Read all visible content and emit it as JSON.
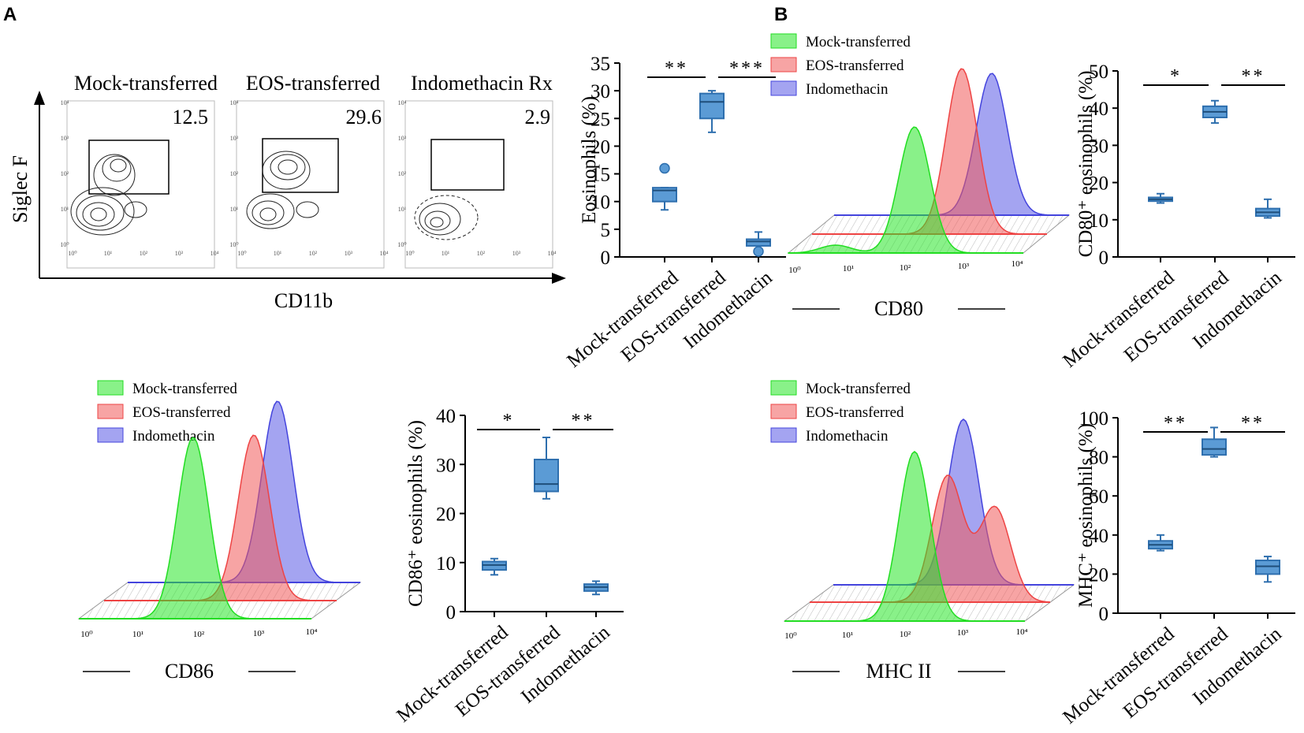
{
  "panels": {
    "a": "A",
    "b": "B"
  },
  "flow": {
    "plots": [
      {
        "title": "Mock-transferred",
        "value": "12.5"
      },
      {
        "title": "EOS-transferred",
        "value": "29.6"
      },
      {
        "title": "Indomethacin Rx",
        "value": "2.9"
      }
    ],
    "y_axis_label": "Siglec F",
    "x_axis_label": "CD11b",
    "tick_labels": [
      "10⁰",
      "10¹",
      "10²",
      "10³",
      "10⁴"
    ]
  },
  "histograms": {
    "legend": [
      "Mock-transferred",
      "EOS-transferred",
      "Indomethacin"
    ],
    "colors": {
      "mock": "#22dd22",
      "eos": "#ee4444",
      "indo": "#4444dd"
    },
    "tick_labels": [
      "10⁰",
      "10¹",
      "10²",
      "10³",
      "10⁴"
    ],
    "items": [
      {
        "xlabel": "CD80"
      },
      {
        "xlabel": "CD86"
      },
      {
        "xlabel": "MHC II"
      }
    ]
  },
  "chart_data": [
    {
      "type": "box",
      "ylabel": "Eosinophils (%)",
      "categories": [
        "Mock-transferred",
        "EOS-transferred",
        "Indomethacin"
      ],
      "yticks": [
        0,
        5,
        10,
        15,
        20,
        25,
        30,
        35
      ],
      "ylim": [
        0,
        35
      ],
      "boxes": [
        {
          "min": 8.5,
          "q1": 10,
          "median": 12,
          "q3": 12.5,
          "max": 12.5,
          "outliers": [
            16
          ]
        },
        {
          "min": 22.5,
          "q1": 25,
          "median": 28,
          "q3": 29.5,
          "max": 30,
          "outliers": []
        },
        {
          "min": 1.5,
          "q1": 2,
          "median": 2.8,
          "q3": 3.2,
          "max": 4.5,
          "outliers": [
            1
          ]
        }
      ],
      "significance": [
        "**",
        "***"
      ]
    },
    {
      "type": "box",
      "ylabel": "CD80⁺ eosinophils (%)",
      "categories": [
        "Mock-transferred",
        "EOS-transferred",
        "Indomethacin"
      ],
      "yticks": [
        0,
        10,
        20,
        30,
        40,
        50
      ],
      "ylim": [
        0,
        50
      ],
      "boxes": [
        {
          "min": 14.5,
          "q1": 15,
          "median": 15.5,
          "q3": 16,
          "max": 17,
          "outliers": []
        },
        {
          "min": 36,
          "q1": 37.5,
          "median": 39,
          "q3": 40.5,
          "max": 42,
          "outliers": []
        },
        {
          "min": 10.5,
          "q1": 11,
          "median": 12,
          "q3": 13,
          "max": 15.5,
          "outliers": []
        }
      ],
      "significance": [
        "*",
        "**"
      ]
    },
    {
      "type": "box",
      "ylabel": "CD86⁺ eosinophils (%)",
      "categories": [
        "Mock-transferred",
        "EOS-transferred",
        "Indomethacin"
      ],
      "yticks": [
        0,
        10,
        20,
        30,
        40
      ],
      "ylim": [
        0,
        40
      ],
      "boxes": [
        {
          "min": 7.5,
          "q1": 8.5,
          "median": 9.5,
          "q3": 10.2,
          "max": 10.8,
          "outliers": []
        },
        {
          "min": 23,
          "q1": 24.5,
          "median": 26,
          "q3": 31,
          "max": 35.5,
          "outliers": []
        },
        {
          "min": 3.5,
          "q1": 4.2,
          "median": 5,
          "q3": 5.6,
          "max": 6.2,
          "outliers": []
        }
      ],
      "significance": [
        "*",
        "**"
      ]
    },
    {
      "type": "box",
      "ylabel": "MHC⁺ eosinophils (%)",
      "categories": [
        "Mock-transferred",
        "EOS-transferred",
        "Indomethacin"
      ],
      "yticks": [
        0,
        20,
        40,
        60,
        80,
        100
      ],
      "ylim": [
        0,
        100
      ],
      "boxes": [
        {
          "min": 32,
          "q1": 33,
          "median": 35,
          "q3": 37,
          "max": 40,
          "outliers": []
        },
        {
          "min": 80,
          "q1": 81,
          "median": 84,
          "q3": 89,
          "max": 95,
          "outliers": []
        },
        {
          "min": 16,
          "q1": 20,
          "median": 24,
          "q3": 27,
          "max": 29,
          "outliers": []
        }
      ],
      "significance": [
        "**",
        "**"
      ]
    }
  ]
}
